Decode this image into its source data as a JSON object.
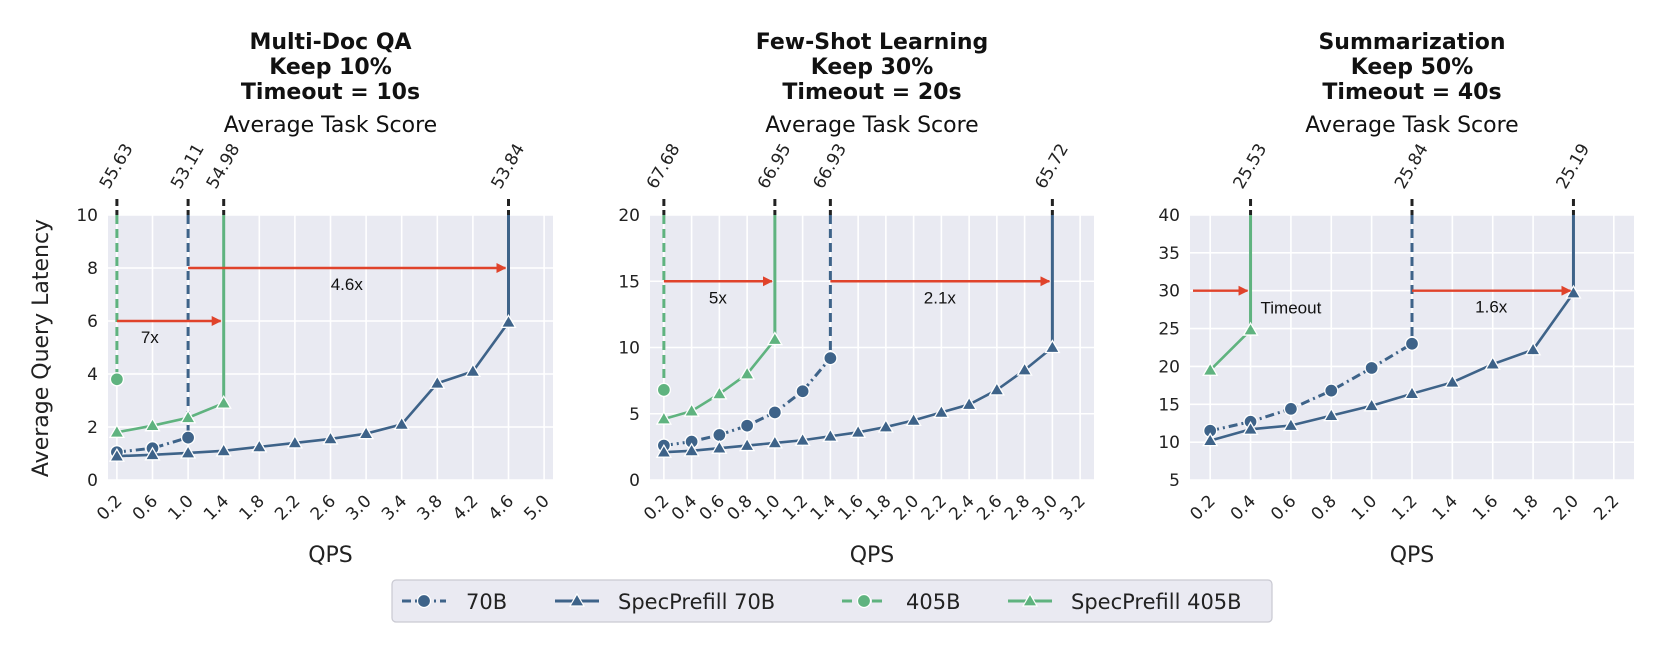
{
  "figure": {
    "ylabel": "Average Query Latency",
    "legend": {
      "placement": "bottom-center",
      "entries": [
        {
          "label": "70B",
          "style": "dashdot",
          "marker": "circle",
          "color": "#3e6389"
        },
        {
          "label": "SpecPrefill 70B",
          "style": "solid",
          "marker": "triangle",
          "color": "#3e6389"
        },
        {
          "label": "405B",
          "style": "dashed",
          "marker": "circle",
          "color": "#5fb37f"
        },
        {
          "label": "SpecPrefill 405B",
          "style": "solid",
          "marker": "triangle",
          "color": "#5fb37f"
        }
      ]
    },
    "colors": {
      "70B": "#3e6389",
      "405B": "#5fb37f",
      "arrow": "#e0432b",
      "panel_bg": "#e9eaf2",
      "grid": "#ffffff"
    }
  },
  "chart_data": [
    {
      "type": "line",
      "title_lines": [
        "Multi-Doc QA",
        "Keep 10%",
        "Timeout = 10s"
      ],
      "top_axis_label": "Average Task Score",
      "xlabel": "QPS",
      "ylabel": "Average Query Latency",
      "xlim": [
        0.1,
        5.1
      ],
      "ylim": [
        0,
        10
      ],
      "xticks": [
        "0.2",
        "0.6",
        "1.0",
        "1.4",
        "1.8",
        "2.2",
        "2.6",
        "3.0",
        "3.4",
        "3.8",
        "4.2",
        "4.6",
        "5.0"
      ],
      "yticks": [
        "0",
        "2",
        "4",
        "6",
        "8",
        "10"
      ],
      "grid": true,
      "series": [
        {
          "name": "70B",
          "x": [
            0.2,
            0.6,
            1.0
          ],
          "y": [
            1.05,
            1.2,
            1.6
          ],
          "max_qps": 1.0,
          "score": "53.11"
        },
        {
          "name": "SpecPrefill 70B",
          "x": [
            0.2,
            0.6,
            1.0,
            1.4,
            1.8,
            2.2,
            2.6,
            3.0,
            3.4,
            3.8,
            4.2,
            4.6
          ],
          "y": [
            0.9,
            0.95,
            1.02,
            1.1,
            1.25,
            1.4,
            1.55,
            1.75,
            2.1,
            3.65,
            4.1,
            5.95
          ],
          "max_qps": 4.6,
          "score": "53.84"
        },
        {
          "name": "405B",
          "x": [
            0.2
          ],
          "y": [
            3.8
          ],
          "max_qps": 0.2,
          "score": "55.63"
        },
        {
          "name": "SpecPrefill 405B",
          "x": [
            0.2,
            0.6,
            1.0,
            1.4
          ],
          "y": [
            1.8,
            2.05,
            2.35,
            2.9
          ],
          "max_qps": 1.4,
          "score": "54.98"
        }
      ],
      "annotations": [
        {
          "text": "7x",
          "from_x": 0.2,
          "to_x": 1.4,
          "arrow_y": 6.0
        },
        {
          "text": "4.6x",
          "from_x": 1.0,
          "to_x": 4.6,
          "arrow_y": 8.0
        }
      ]
    },
    {
      "type": "line",
      "title_lines": [
        "Few-Shot Learning",
        "Keep 30%",
        "Timeout = 20s"
      ],
      "top_axis_label": "Average Task Score",
      "xlabel": "QPS",
      "ylabel": "",
      "xlim": [
        0.1,
        3.3
      ],
      "ylim": [
        0,
        20
      ],
      "xticks": [
        "0.2",
        "0.4",
        "0.6",
        "0.8",
        "1.0",
        "1.2",
        "1.4",
        "1.6",
        "1.8",
        "2.0",
        "2.2",
        "2.4",
        "2.6",
        "2.8",
        "3.0",
        "3.2"
      ],
      "yticks": [
        "0",
        "5",
        "10",
        "15",
        "20"
      ],
      "grid": true,
      "series": [
        {
          "name": "70B",
          "x": [
            0.2,
            0.4,
            0.6,
            0.8,
            1.0,
            1.2,
            1.4
          ],
          "y": [
            2.6,
            2.9,
            3.4,
            4.1,
            5.1,
            6.7,
            9.2
          ],
          "max_qps": 1.4,
          "score": "66.93"
        },
        {
          "name": "SpecPrefill 70B",
          "x": [
            0.2,
            0.4,
            0.6,
            0.8,
            1.0,
            1.2,
            1.4,
            1.6,
            1.8,
            2.0,
            2.2,
            2.4,
            2.6,
            2.8,
            3.0
          ],
          "y": [
            2.1,
            2.2,
            2.4,
            2.6,
            2.8,
            3.0,
            3.3,
            3.6,
            4.0,
            4.5,
            5.1,
            5.7,
            6.8,
            8.3,
            10.0
          ],
          "max_qps": 3.0,
          "score": "65.72"
        },
        {
          "name": "405B",
          "x": [
            0.2
          ],
          "y": [
            6.8
          ],
          "max_qps": 0.2,
          "score": "67.68"
        },
        {
          "name": "SpecPrefill 405B",
          "x": [
            0.2,
            0.4,
            0.6,
            0.8,
            1.0
          ],
          "y": [
            4.6,
            5.2,
            6.5,
            8.0,
            10.6
          ],
          "max_qps": 1.0,
          "score": "66.95"
        }
      ],
      "annotations": [
        {
          "text": "5x",
          "from_x": 0.2,
          "to_x": 1.0,
          "arrow_y": 15.0
        },
        {
          "text": "2.1x",
          "from_x": 1.4,
          "to_x": 3.0,
          "arrow_y": 15.0
        }
      ]
    },
    {
      "type": "line",
      "title_lines": [
        "Summarization",
        "Keep 50%",
        "Timeout = 40s"
      ],
      "top_axis_label": "Average Task Score",
      "xlabel": "QPS",
      "ylabel": "",
      "xlim": [
        0.1,
        2.3
      ],
      "ylim": [
        5,
        40
      ],
      "xticks": [
        "0.2",
        "0.4",
        "0.6",
        "0.8",
        "1.0",
        "1.2",
        "1.4",
        "1.6",
        "1.8",
        "2.0",
        "2.2"
      ],
      "yticks": [
        "5",
        "10",
        "15",
        "20",
        "25",
        "30",
        "35",
        "40"
      ],
      "grid": true,
      "series": [
        {
          "name": "70B",
          "x": [
            0.2,
            0.4,
            0.6,
            0.8,
            1.0,
            1.2
          ],
          "y": [
            11.5,
            12.7,
            14.4,
            16.8,
            19.8,
            23.0
          ],
          "max_qps": 1.2,
          "score": "25.84"
        },
        {
          "name": "SpecPrefill 70B",
          "x": [
            0.2,
            0.4,
            0.6,
            0.8,
            1.0,
            1.2,
            1.4,
            1.6,
            1.8,
            2.0
          ],
          "y": [
            10.2,
            11.7,
            12.2,
            13.5,
            14.8,
            16.4,
            17.9,
            20.3,
            22.2,
            29.7
          ],
          "max_qps": 2.0,
          "score": "25.19"
        },
        {
          "name": "SpecPrefill 405B",
          "x": [
            0.2,
            0.4
          ],
          "y": [
            19.5,
            24.8
          ],
          "max_qps": 0.4,
          "score": "25.53"
        }
      ],
      "annotations": [
        {
          "text": "Timeout",
          "from_x": 0.1,
          "to_x": 0.4,
          "arrow_y": 30.0
        },
        {
          "text": "1.6x",
          "from_x": 1.2,
          "to_x": 2.0,
          "arrow_y": 30.0
        }
      ]
    }
  ]
}
